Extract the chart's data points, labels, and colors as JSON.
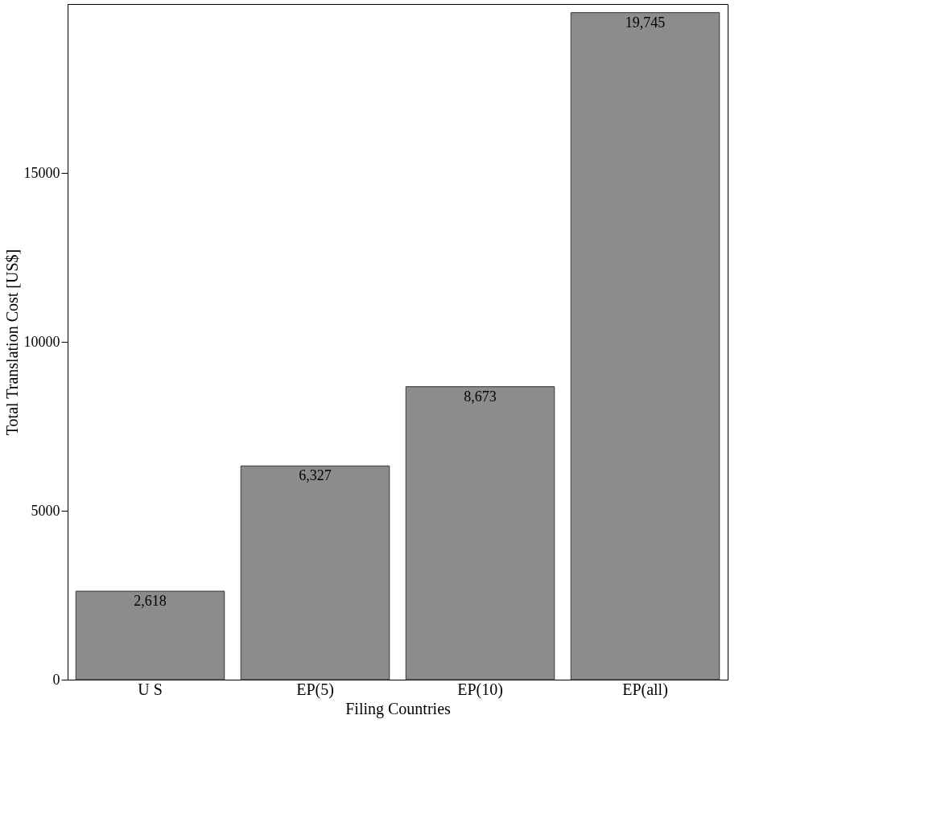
{
  "chart_data": {
    "type": "bar",
    "xlabel": "Filing Countries",
    "ylabel": "Total Translation Cost [US$]",
    "categories": [
      "U S",
      "EP(5)",
      "EP(10)",
      "EP(all)"
    ],
    "values": [
      2618,
      6327,
      8673,
      19745
    ],
    "color": "#8c8c8c",
    "value_labels": [
      "2,618",
      "6,327",
      "8,673",
      "19,745"
    ],
    "ylim": [
      0,
      20000
    ],
    "yticks": [
      0,
      5000,
      10000,
      15000
    ],
    "grid": false
  }
}
